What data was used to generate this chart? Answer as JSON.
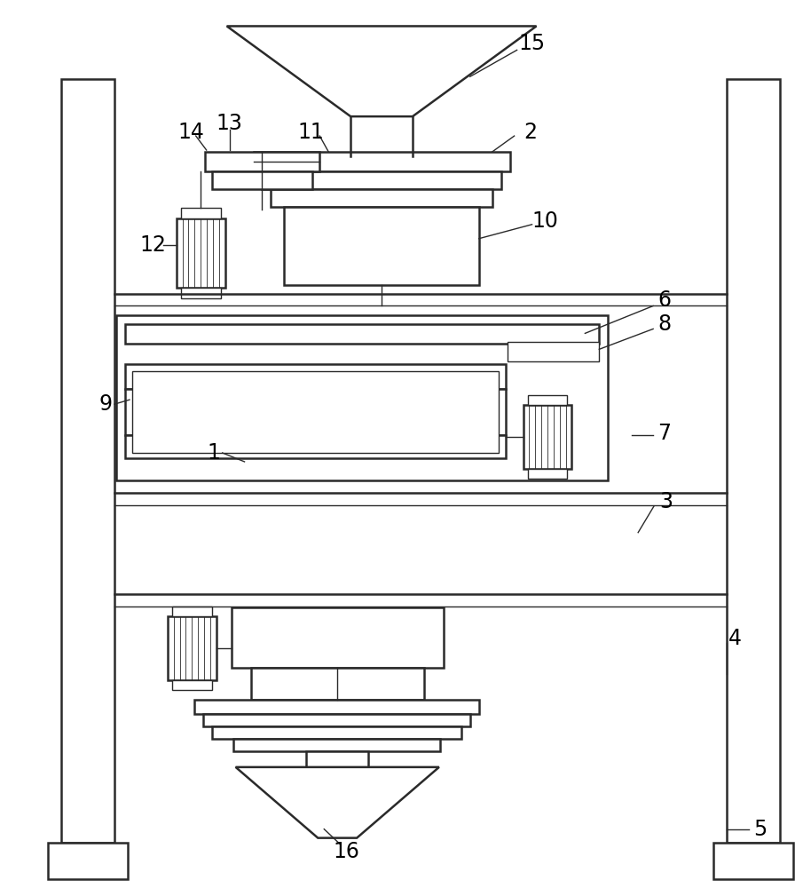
{
  "bg_color": "#ffffff",
  "line_color": "#2a2a2a",
  "lw": 1.8,
  "tlw": 1.0,
  "fig_width": 9.05,
  "fig_height": 10.0
}
